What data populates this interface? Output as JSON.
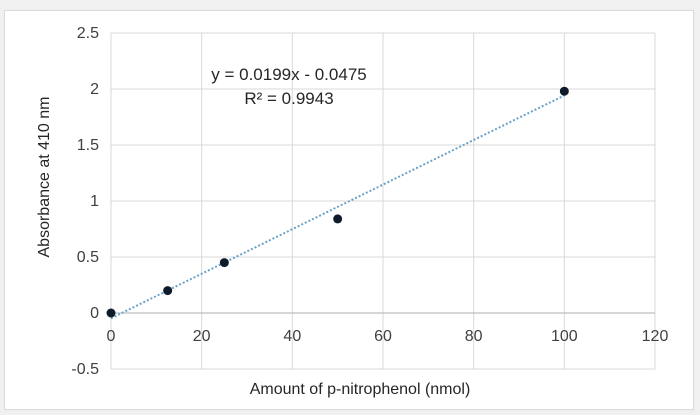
{
  "chart_data": {
    "type": "scatter",
    "title": "",
    "xlabel": "Amount of p-nitrophenol (nmol)",
    "ylabel": "Absorbance at 410 nm",
    "xlim": [
      0,
      120
    ],
    "ylim": [
      -0.5,
      2.5
    ],
    "xticks": [
      "0",
      "20",
      "40",
      "60",
      "80",
      "100",
      "120"
    ],
    "yticks": [
      "-0.5",
      "0",
      "0.5",
      "1",
      "1.5",
      "2",
      "2.5"
    ],
    "grid": true,
    "legend": "none",
    "series": [
      {
        "x": [
          0,
          12.5,
          25,
          50,
          100
        ],
        "y": [
          0.0,
          0.2,
          0.45,
          0.84,
          1.98
        ],
        "color": "#0d1b2a"
      }
    ],
    "trendline": {
      "type": "linear",
      "slope": 0.0199,
      "intercept": -0.0475,
      "color": "#6aa2c8",
      "equation": "y = 0.0199x - 0.0475",
      "r_squared": "R² = 0.9943"
    }
  }
}
